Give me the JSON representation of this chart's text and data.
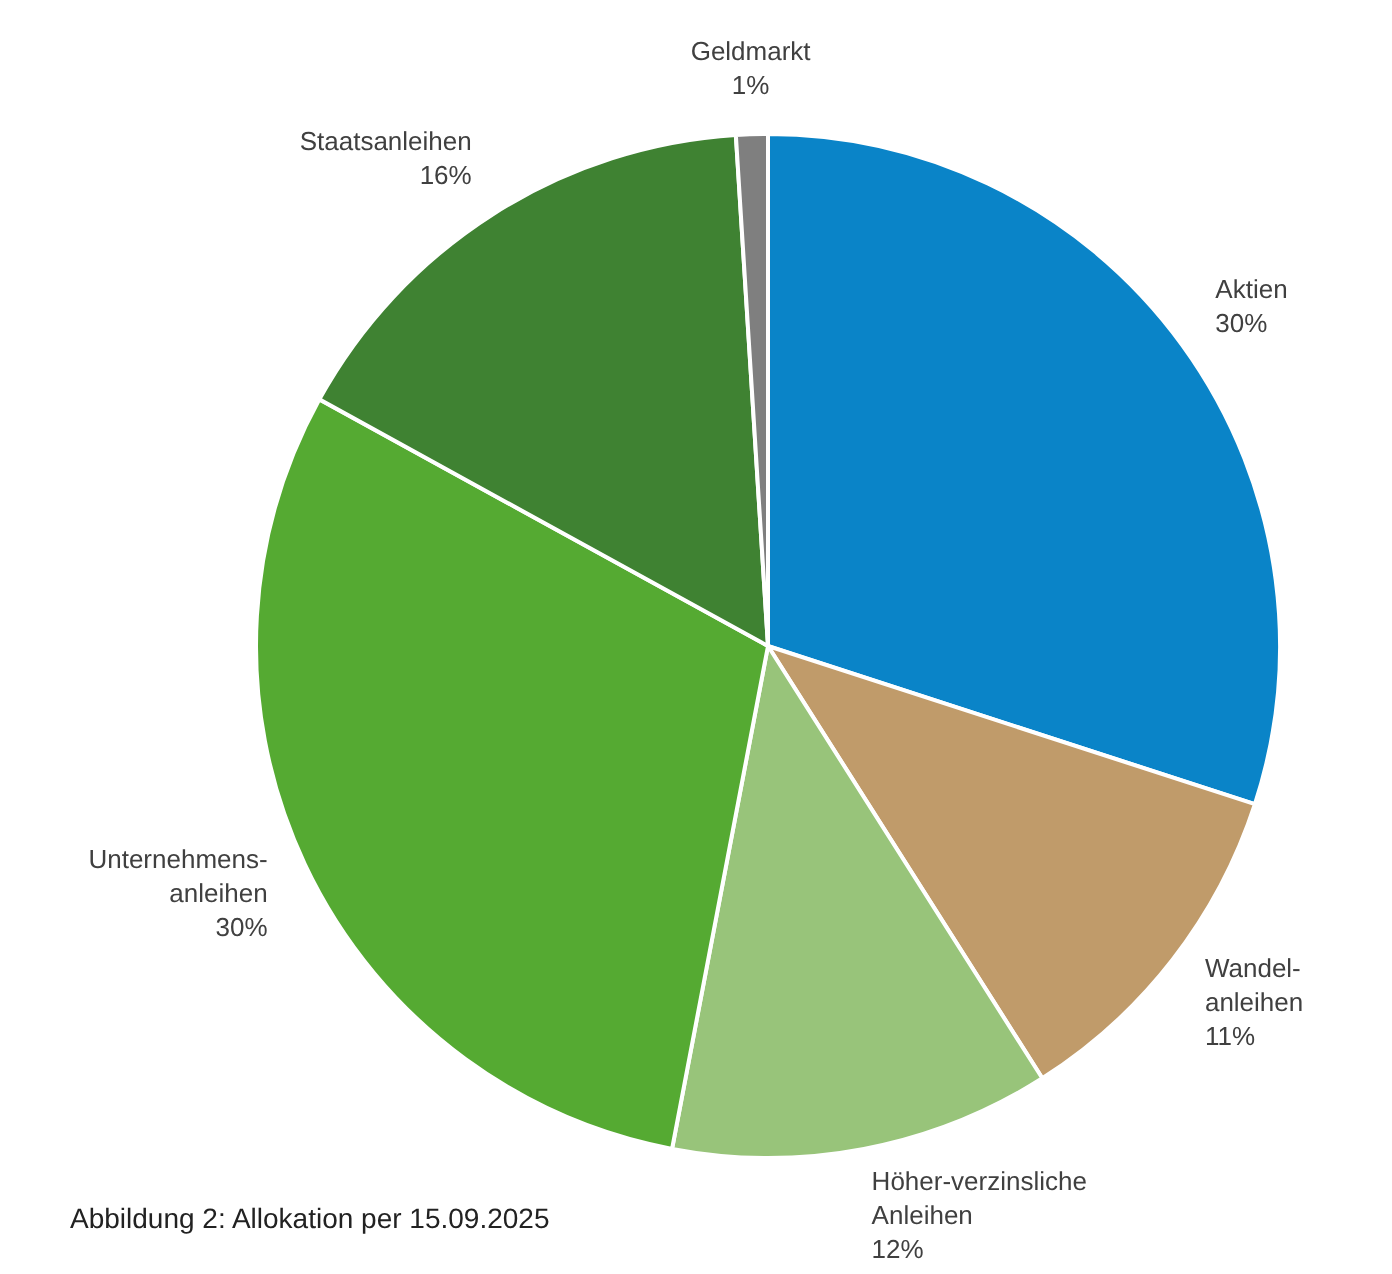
{
  "chart_data": {
    "type": "pie",
    "categories": [
      "Aktien",
      "Wandel-\nanleihen",
      "Höher-verzinsliche\nAnleihen",
      "Unternehmens-\nanleihen",
      "Staatsanleihen",
      "Geldmarkt"
    ],
    "values": [
      30,
      11,
      12,
      30,
      16,
      1
    ],
    "value_labels": [
      "30%",
      "11%",
      "12%",
      "30%",
      "16%",
      "1%"
    ],
    "colors": [
      "#0a84c8",
      "#c09b6a",
      "#98c47a",
      "#55aa32",
      "#3f8232",
      "#7f7f7f"
    ],
    "annotations": [
      "Abbildung 2: Allokation per 15.09.2025"
    ]
  }
}
